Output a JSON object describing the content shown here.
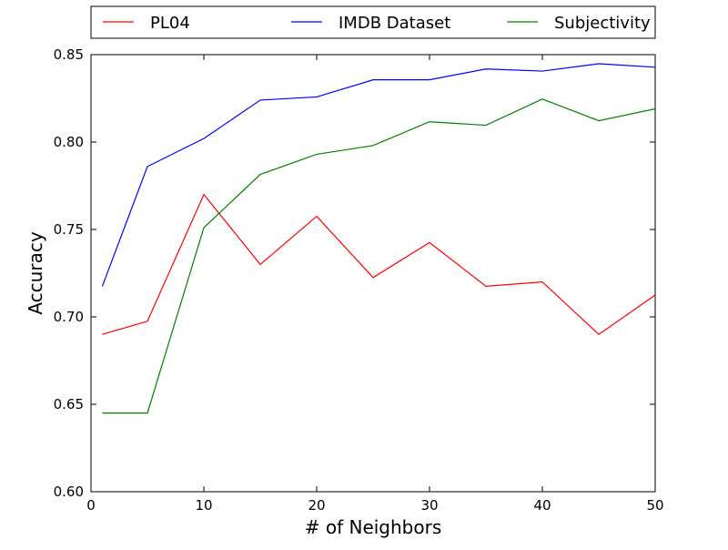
{
  "chart_data": {
    "type": "line",
    "title": "",
    "xlabel": "# of Neighbors",
    "ylabel": "Accuracy",
    "xlim": [
      0,
      50
    ],
    "ylim": [
      0.6,
      0.85
    ],
    "xticks": [
      0,
      10,
      20,
      30,
      40,
      50
    ],
    "yticks": [
      0.6,
      0.65,
      0.7,
      0.75,
      0.8,
      0.85
    ],
    "xtick_labels": [
      "0",
      "10",
      "20",
      "30",
      "40",
      "50"
    ],
    "ytick_labels": [
      "0.60",
      "0.65",
      "0.70",
      "0.75",
      "0.80",
      "0.85"
    ],
    "grid": false,
    "legend_position": "top-center, above plot",
    "x": [
      1,
      5,
      10,
      15,
      20,
      25,
      30,
      35,
      40,
      45,
      50
    ],
    "series": [
      {
        "name": "PL04",
        "color": "#ff0000",
        "values": [
          0.69,
          0.6975,
          0.77,
          0.73,
          0.7575,
          0.7225,
          0.7425,
          0.7175,
          0.72,
          0.69,
          0.7125
        ]
      },
      {
        "name": "IMDB Dataset",
        "color": "#0000ff",
        "values": [
          0.7175,
          0.786,
          0.802,
          0.824,
          0.8258,
          0.8356,
          0.8356,
          0.8418,
          0.8406,
          0.8448,
          0.8428
        ]
      },
      {
        "name": "Subjectivity",
        "color": "#008000",
        "values": [
          0.645,
          0.645,
          0.751,
          0.7815,
          0.793,
          0.798,
          0.8116,
          0.8096,
          0.8246,
          0.8122,
          0.819
        ]
      }
    ]
  }
}
